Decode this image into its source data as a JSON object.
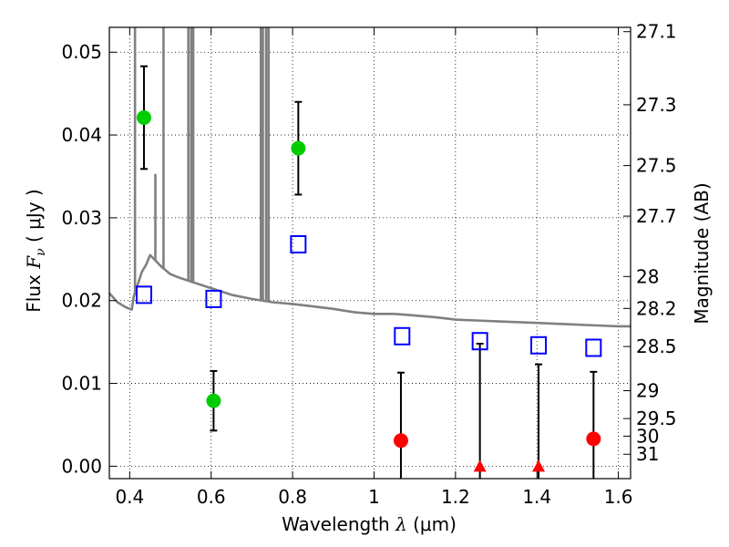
{
  "chart_data": {
    "type": "scatter",
    "xlabel_parts": {
      "text": "Wavelength",
      "symbol": "λ",
      "unit": "(μm)"
    },
    "ylabel_parts": {
      "text": "Flux",
      "symbol": "F",
      "subscript": "ν",
      "unit": "( μJy )"
    },
    "y2label": "Magnitude (AB)",
    "xlim": [
      0.35,
      1.63
    ],
    "ylim": [
      -0.0015,
      0.053
    ],
    "grid": true,
    "x_ticks": [
      {
        "value": 0.4,
        "label": "0.4"
      },
      {
        "value": 0.6,
        "label": "0.6"
      },
      {
        "value": 0.8,
        "label": "0.8"
      },
      {
        "value": 1.0,
        "label": "1"
      },
      {
        "value": 1.2,
        "label": "1.2"
      },
      {
        "value": 1.4,
        "label": "1.4"
      },
      {
        "value": 1.6,
        "label": "1.6"
      }
    ],
    "y_ticks": [
      {
        "value": 0.0,
        "label": "0.00"
      },
      {
        "value": 0.01,
        "label": "0.01"
      },
      {
        "value": 0.02,
        "label": "0.02"
      },
      {
        "value": 0.03,
        "label": "0.03"
      },
      {
        "value": 0.04,
        "label": "0.04"
      },
      {
        "value": 0.05,
        "label": "0.05"
      }
    ],
    "mag_ticks": [
      {
        "value": 27.1,
        "label": "27.1"
      },
      {
        "value": 27.3,
        "label": "27.3"
      },
      {
        "value": 27.5,
        "label": "27.5"
      },
      {
        "value": 27.7,
        "label": "27.7"
      },
      {
        "value": 28.0,
        "label": "28"
      },
      {
        "value": 28.2,
        "label": "28.2"
      },
      {
        "value": 28.5,
        "label": "28.5"
      },
      {
        "value": 29.0,
        "label": "29"
      },
      {
        "value": 29.5,
        "label": "29.5"
      },
      {
        "value": 30.0,
        "label": "30"
      },
      {
        "value": 31.0,
        "label": "31"
      }
    ],
    "series": [
      {
        "kind": "detections",
        "color": "#00cc00",
        "points": [
          {
            "x": 0.435,
            "y": 0.0421,
            "err_low": 0.0359,
            "err_high": 0.0483
          },
          {
            "x": 0.606,
            "y": 0.0079,
            "err_low": 0.0043,
            "err_high": 0.0115
          },
          {
            "x": 0.814,
            "y": 0.0384,
            "err_low": 0.0328,
            "err_high": 0.044
          }
        ]
      },
      {
        "kind": "red-detections",
        "color": "#ff0000",
        "points": [
          {
            "x": 1.066,
            "y": 0.0031,
            "err_low": -0.0015,
            "err_high": 0.0113
          },
          {
            "x": 1.539,
            "y": 0.0033,
            "err_low": -0.0015,
            "err_high": 0.0114
          }
        ]
      },
      {
        "kind": "upper-limits",
        "color": "#ff0000",
        "points": [
          {
            "x": 1.26,
            "y": 0.0,
            "err_low": -0.0015,
            "err_high": 0.0148
          },
          {
            "x": 1.404,
            "y": 0.0,
            "err_low": -0.0015,
            "err_high": 0.0123
          }
        ]
      },
      {
        "kind": "model-photometry",
        "color": "#0000ff",
        "points": [
          {
            "x": 0.435,
            "y": 0.0207
          },
          {
            "x": 0.606,
            "y": 0.0202
          },
          {
            "x": 0.814,
            "y": 0.0268
          },
          {
            "x": 1.069,
            "y": 0.0157
          },
          {
            "x": 1.26,
            "y": 0.0151
          },
          {
            "x": 1.404,
            "y": 0.0146
          },
          {
            "x": 1.539,
            "y": 0.0143
          }
        ]
      }
    ],
    "model_spectrum": {
      "color": "#808080",
      "continuum": [
        [
          0.35,
          0.0209
        ],
        [
          0.37,
          0.0198
        ],
        [
          0.39,
          0.0192
        ],
        [
          0.405,
          0.0189
        ],
        [
          0.41,
          0.0205
        ],
        [
          0.42,
          0.022
        ],
        [
          0.43,
          0.0235
        ],
        [
          0.44,
          0.0243
        ],
        [
          0.45,
          0.0255
        ],
        [
          0.46,
          0.025
        ],
        [
          0.47,
          0.0245
        ],
        [
          0.48,
          0.024
        ],
        [
          0.5,
          0.0232
        ],
        [
          0.52,
          0.0228
        ],
        [
          0.55,
          0.0223
        ],
        [
          0.6,
          0.0215
        ],
        [
          0.65,
          0.0207
        ],
        [
          0.7,
          0.0202
        ],
        [
          0.75,
          0.0198
        ],
        [
          0.8,
          0.0196
        ],
        [
          0.85,
          0.0193
        ],
        [
          0.9,
          0.019
        ],
        [
          0.95,
          0.0186
        ],
        [
          1.0,
          0.0184
        ],
        [
          1.05,
          0.0184
        ],
        [
          1.1,
          0.0182
        ],
        [
          1.15,
          0.018
        ],
        [
          1.2,
          0.0177
        ],
        [
          1.25,
          0.0176
        ],
        [
          1.3,
          0.0175
        ],
        [
          1.35,
          0.0174
        ],
        [
          1.4,
          0.0173
        ],
        [
          1.45,
          0.0172
        ],
        [
          1.5,
          0.0171
        ],
        [
          1.55,
          0.017
        ],
        [
          1.6,
          0.0169
        ],
        [
          1.63,
          0.0169
        ]
      ],
      "emission_lines": [
        {
          "x": 0.413,
          "top": 0.053
        },
        {
          "x": 0.463,
          "top": 0.0353
        },
        {
          "x": 0.483,
          "top": 0.053
        },
        {
          "x": 0.544,
          "top": 0.053
        },
        {
          "x": 0.551,
          "top": 0.053
        },
        {
          "x": 0.556,
          "top": 0.053
        },
        {
          "x": 0.722,
          "top": 0.053
        },
        {
          "x": 0.727,
          "top": 0.053
        },
        {
          "x": 0.735,
          "top": 0.053
        },
        {
          "x": 0.741,
          "top": 0.053
        }
      ]
    }
  }
}
